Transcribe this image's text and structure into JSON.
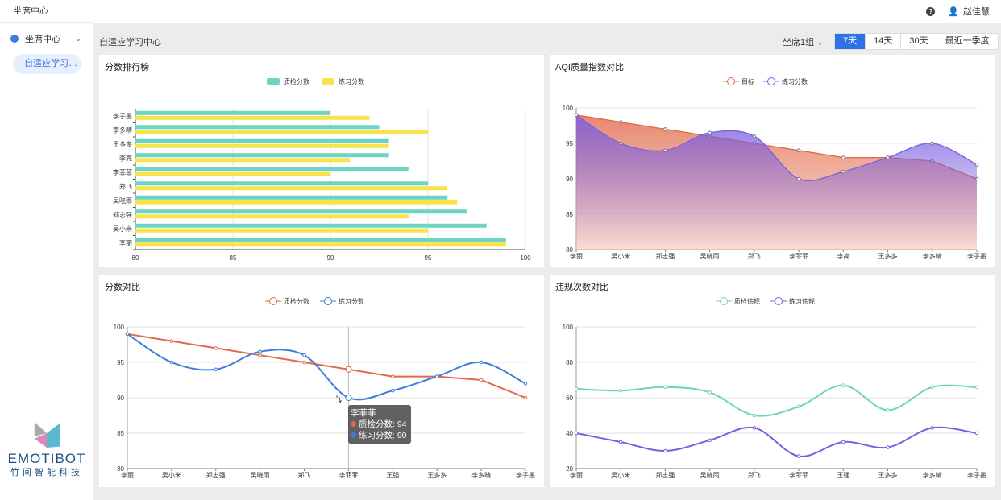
{
  "sidebar": {
    "brand": "坐席中心",
    "menu": "坐席中心",
    "sub_item": "自适应学习中心"
  },
  "topbar": {
    "help_icon": "help-circle-icon",
    "user_icon": "user-icon",
    "user": "赵佳慧"
  },
  "breadcrumb": "自适应学习中心",
  "filter": {
    "group": "坐席1组",
    "ranges": [
      "7天",
      "14天",
      "30天",
      "最近一季度"
    ],
    "active": "7天"
  },
  "colors": {
    "teal": "#6dd3c2",
    "yellow": "#f7e44a",
    "orange": "#e1694a",
    "purple": "#7b5ee0",
    "blue": "#3b7ddd",
    "accent": "#2e72e5"
  },
  "chart_data": [
    {
      "title": "分数排行榜",
      "type": "bar",
      "orientation": "horizontal",
      "categories": [
        "李丽",
        "吴小米",
        "郑志强",
        "吴晓雨",
        "郑飞",
        "李菲菲",
        "李亮",
        "王多多",
        "李多晴",
        "李子墨"
      ],
      "series": [
        {
          "name": "质检分数",
          "values": [
            99,
            98,
            97,
            96,
            95,
            94,
            93,
            93,
            92.5,
            90
          ]
        },
        {
          "name": "练习分数",
          "values": [
            99,
            95,
            94,
            96.5,
            96,
            90,
            91,
            93,
            95,
            92
          ]
        }
      ],
      "xlim": [
        80,
        100
      ],
      "xticks": [
        80,
        85,
        90,
        95,
        100
      ],
      "grid": true,
      "legend": "top-center"
    },
    {
      "title": "AQI质量指数对比",
      "type": "area",
      "categories": [
        "李丽",
        "吴小米",
        "郑志强",
        "吴晓雨",
        "郑飞",
        "李菲菲",
        "李亮",
        "王多多",
        "李多晴",
        "李子墨"
      ],
      "series": [
        {
          "name": "目标",
          "values": [
            99,
            98,
            97,
            96,
            95,
            94,
            93,
            93,
            92.5,
            90
          ]
        },
        {
          "name": "练习分数",
          "values": [
            99,
            95,
            94,
            96.5,
            96,
            90,
            91,
            93,
            95,
            92
          ]
        }
      ],
      "ylim": [
        80,
        100
      ],
      "yticks": [
        80,
        85,
        90,
        95,
        100
      ],
      "grid": true,
      "legend": "top-center"
    },
    {
      "title": "分数对比",
      "type": "line",
      "categories": [
        "李丽",
        "吴小米",
        "郑志强",
        "吴晓雨",
        "郑飞",
        "李菲菲",
        "王强",
        "王多多",
        "李多晴",
        "李子墨"
      ],
      "series": [
        {
          "name": "质检分数",
          "values": [
            99,
            98,
            97,
            96,
            95,
            94,
            93,
            93,
            92.5,
            90
          ]
        },
        {
          "name": "练习分数",
          "values": [
            99,
            95,
            94,
            96.5,
            96,
            90,
            91,
            93,
            95,
            92
          ]
        }
      ],
      "ylim": [
        80,
        100
      ],
      "yticks": [
        80,
        85,
        90,
        95,
        100
      ],
      "grid": true,
      "legend": "top-center",
      "tooltip": {
        "title": "李菲菲",
        "rows": [
          "质检分数: 94",
          "练习分数: 90"
        ]
      }
    },
    {
      "title": "违规次数对比",
      "type": "line",
      "categories": [
        "李丽",
        "吴小米",
        "郑志强",
        "吴晓雨",
        "郑飞",
        "李菲菲",
        "王强",
        "王多多",
        "李多晴",
        "李子墨"
      ],
      "series": [
        {
          "name": "质检违规",
          "values": [
            65,
            64,
            66,
            63,
            50,
            55,
            67,
            53,
            66,
            66
          ]
        },
        {
          "name": "练习违规",
          "values": [
            40,
            35,
            30,
            36,
            43,
            27,
            35,
            32,
            43,
            40
          ]
        }
      ],
      "ylim": [
        20,
        100
      ],
      "yticks": [
        20,
        40,
        60,
        80,
        100
      ],
      "grid": true,
      "legend": "top-center"
    }
  ],
  "logo": {
    "name": "EMOTIBOT",
    "sub": "竹间智能科技"
  }
}
